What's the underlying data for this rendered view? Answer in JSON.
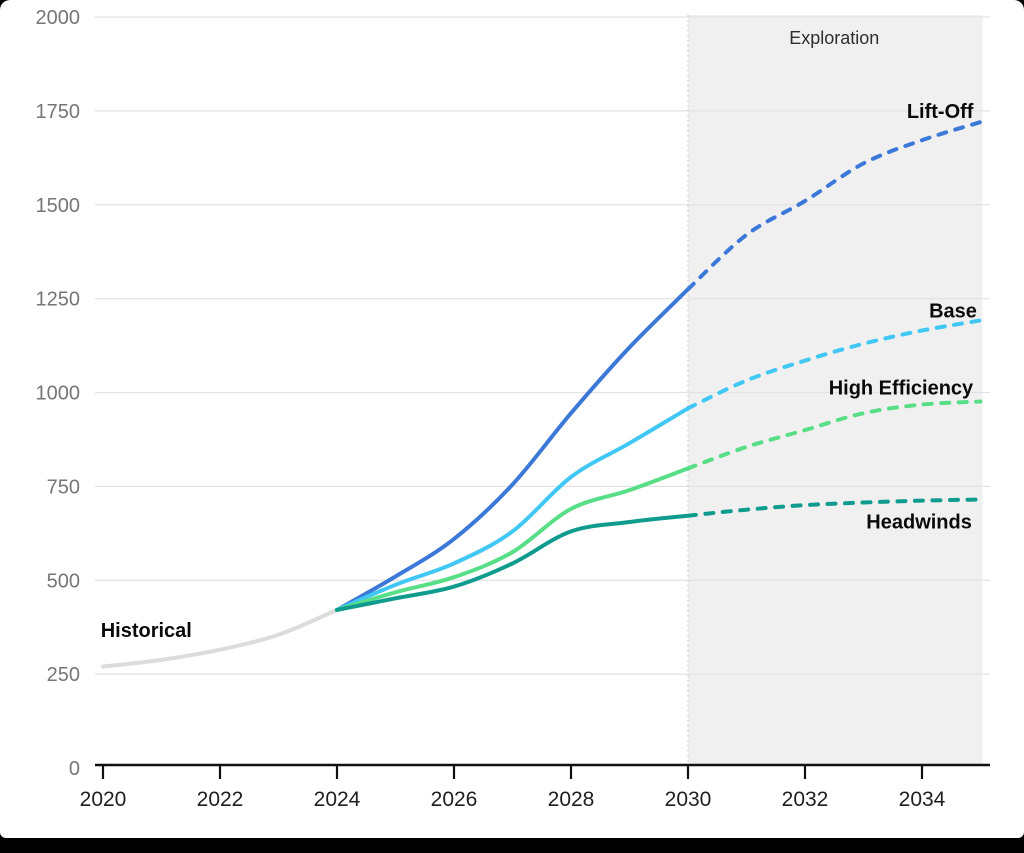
{
  "frame": {
    "page_background": "#000000",
    "canvas_background": "#ffffff"
  },
  "chart_data": {
    "type": "line",
    "title": "",
    "xlabel": "",
    "ylabel": "",
    "xlim": [
      2020,
      2035
    ],
    "ylim": [
      0,
      2000
    ],
    "x_ticks": [
      2020,
      2022,
      2024,
      2026,
      2028,
      2030,
      2032,
      2034
    ],
    "y_ticks": [
      0,
      250,
      500,
      750,
      1000,
      1250,
      1500,
      1750,
      2000
    ],
    "grid": "horizontal",
    "legend_position": "inline-labels",
    "colors": {
      "grid": "#e3e3e3",
      "axis": "#111111",
      "y_tick_text": "#767676",
      "x_tick_text": "#1f1f1f",
      "label_text": "#0a0a0a",
      "region_fill": "#f0f0f0",
      "region_border": "#c8c8c8"
    },
    "region": {
      "label": "Exploration",
      "from": 2030,
      "to": 2035,
      "label_at": {
        "year": 2032.5,
        "value": 1941
      }
    },
    "series": [
      {
        "id": "historical",
        "label": "Historical",
        "color": "#dcdcdc",
        "style": "solid",
        "years": [
          2020,
          2021,
          2022,
          2023,
          2024
        ],
        "values": [
          270,
          288,
          315,
          355,
          421
        ],
        "label_at": {
          "year": 2020.74,
          "value": 367
        }
      },
      {
        "id": "lift-off",
        "label": "Lift-Off",
        "color": "#3c78d8",
        "style": "solid-then-dashed",
        "dash_from": 2030,
        "years": [
          2024,
          2025,
          2026,
          2027,
          2028,
          2029,
          2030,
          2031,
          2032,
          2033,
          2034,
          2035
        ],
        "values": [
          421,
          510,
          610,
          755,
          945,
          1120,
          1275,
          1420,
          1510,
          1610,
          1672,
          1720
        ],
        "label_at": {
          "year": 2034.31,
          "value": 1750
        }
      },
      {
        "id": "base",
        "label": "Base",
        "color": "#41c7f4",
        "style": "solid-then-dashed",
        "dash_from": 2030,
        "years": [
          2024,
          2025,
          2026,
          2027,
          2028,
          2029,
          2030,
          2031,
          2032,
          2033,
          2034,
          2035
        ],
        "values": [
          421,
          488,
          545,
          630,
          775,
          865,
          958,
          1032,
          1085,
          1130,
          1165,
          1192
        ],
        "label_at": {
          "year": 2034.53,
          "value": 1218
        }
      },
      {
        "id": "high-efficiency",
        "label": "High Efficiency",
        "color": "#57de86",
        "style": "solid-then-dashed",
        "dash_from": 2030,
        "years": [
          2024,
          2025,
          2026,
          2027,
          2028,
          2029,
          2030,
          2031,
          2032,
          2033,
          2034,
          2035
        ],
        "values": [
          421,
          468,
          508,
          575,
          690,
          740,
          798,
          855,
          900,
          945,
          968,
          976
        ],
        "label_at": {
          "year": 2033.64,
          "value": 1013
        }
      },
      {
        "id": "headwinds",
        "label": "Headwinds",
        "color": "#0f9b8e",
        "style": "solid-then-dashed",
        "dash_from": 2030,
        "years": [
          2024,
          2025,
          2026,
          2027,
          2028,
          2029,
          2030,
          2031,
          2032,
          2033,
          2034,
          2035
        ],
        "values": [
          421,
          452,
          483,
          545,
          630,
          655,
          672,
          688,
          700,
          707,
          712,
          715
        ],
        "label_at": {
          "year": 2033.95,
          "value": 657
        }
      }
    ]
  }
}
